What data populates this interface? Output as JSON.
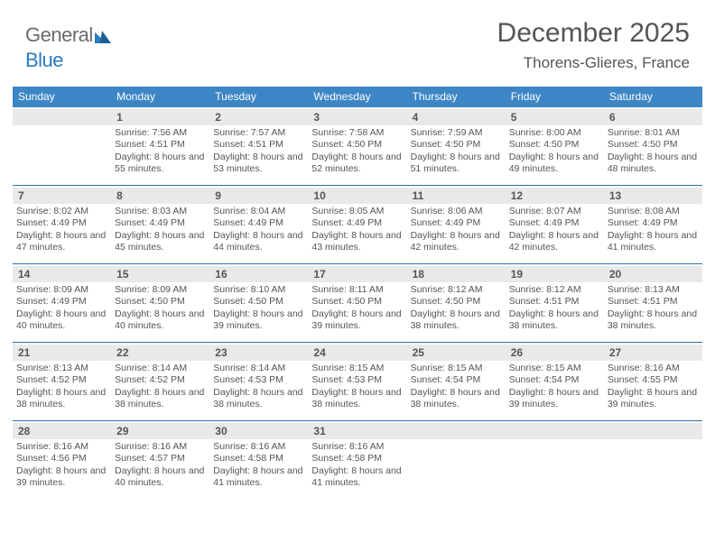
{
  "brand": {
    "part1": "General",
    "part2": "Blue"
  },
  "title": {
    "month": "December 2025",
    "location": "Thorens-Glieres, France"
  },
  "colors": {
    "header_bg": "#3d86c6",
    "week_border": "#2e6da4",
    "daynum_bg": "#e9e9e9",
    "text": "#555555",
    "brand_gray": "#6a6a6a",
    "brand_blue": "#2b7bbf"
  },
  "day_names": [
    "Sunday",
    "Monday",
    "Tuesday",
    "Wednesday",
    "Thursday",
    "Friday",
    "Saturday"
  ],
  "weeks": [
    [
      null,
      {
        "n": "1",
        "sr": "7:56 AM",
        "ss": "4:51 PM",
        "dl": "8 hours and 55 minutes."
      },
      {
        "n": "2",
        "sr": "7:57 AM",
        "ss": "4:51 PM",
        "dl": "8 hours and 53 minutes."
      },
      {
        "n": "3",
        "sr": "7:58 AM",
        "ss": "4:50 PM",
        "dl": "8 hours and 52 minutes."
      },
      {
        "n": "4",
        "sr": "7:59 AM",
        "ss": "4:50 PM",
        "dl": "8 hours and 51 minutes."
      },
      {
        "n": "5",
        "sr": "8:00 AM",
        "ss": "4:50 PM",
        "dl": "8 hours and 49 minutes."
      },
      {
        "n": "6",
        "sr": "8:01 AM",
        "ss": "4:50 PM",
        "dl": "8 hours and 48 minutes."
      }
    ],
    [
      {
        "n": "7",
        "sr": "8:02 AM",
        "ss": "4:49 PM",
        "dl": "8 hours and 47 minutes."
      },
      {
        "n": "8",
        "sr": "8:03 AM",
        "ss": "4:49 PM",
        "dl": "8 hours and 45 minutes."
      },
      {
        "n": "9",
        "sr": "8:04 AM",
        "ss": "4:49 PM",
        "dl": "8 hours and 44 minutes."
      },
      {
        "n": "10",
        "sr": "8:05 AM",
        "ss": "4:49 PM",
        "dl": "8 hours and 43 minutes."
      },
      {
        "n": "11",
        "sr": "8:06 AM",
        "ss": "4:49 PM",
        "dl": "8 hours and 42 minutes."
      },
      {
        "n": "12",
        "sr": "8:07 AM",
        "ss": "4:49 PM",
        "dl": "8 hours and 42 minutes."
      },
      {
        "n": "13",
        "sr": "8:08 AM",
        "ss": "4:49 PM",
        "dl": "8 hours and 41 minutes."
      }
    ],
    [
      {
        "n": "14",
        "sr": "8:09 AM",
        "ss": "4:49 PM",
        "dl": "8 hours and 40 minutes."
      },
      {
        "n": "15",
        "sr": "8:09 AM",
        "ss": "4:50 PM",
        "dl": "8 hours and 40 minutes."
      },
      {
        "n": "16",
        "sr": "8:10 AM",
        "ss": "4:50 PM",
        "dl": "8 hours and 39 minutes."
      },
      {
        "n": "17",
        "sr": "8:11 AM",
        "ss": "4:50 PM",
        "dl": "8 hours and 39 minutes."
      },
      {
        "n": "18",
        "sr": "8:12 AM",
        "ss": "4:50 PM",
        "dl": "8 hours and 38 minutes."
      },
      {
        "n": "19",
        "sr": "8:12 AM",
        "ss": "4:51 PM",
        "dl": "8 hours and 38 minutes."
      },
      {
        "n": "20",
        "sr": "8:13 AM",
        "ss": "4:51 PM",
        "dl": "8 hours and 38 minutes."
      }
    ],
    [
      {
        "n": "21",
        "sr": "8:13 AM",
        "ss": "4:52 PM",
        "dl": "8 hours and 38 minutes."
      },
      {
        "n": "22",
        "sr": "8:14 AM",
        "ss": "4:52 PM",
        "dl": "8 hours and 38 minutes."
      },
      {
        "n": "23",
        "sr": "8:14 AM",
        "ss": "4:53 PM",
        "dl": "8 hours and 38 minutes."
      },
      {
        "n": "24",
        "sr": "8:15 AM",
        "ss": "4:53 PM",
        "dl": "8 hours and 38 minutes."
      },
      {
        "n": "25",
        "sr": "8:15 AM",
        "ss": "4:54 PM",
        "dl": "8 hours and 38 minutes."
      },
      {
        "n": "26",
        "sr": "8:15 AM",
        "ss": "4:54 PM",
        "dl": "8 hours and 39 minutes."
      },
      {
        "n": "27",
        "sr": "8:16 AM",
        "ss": "4:55 PM",
        "dl": "8 hours and 39 minutes."
      }
    ],
    [
      {
        "n": "28",
        "sr": "8:16 AM",
        "ss": "4:56 PM",
        "dl": "8 hours and 39 minutes."
      },
      {
        "n": "29",
        "sr": "8:16 AM",
        "ss": "4:57 PM",
        "dl": "8 hours and 40 minutes."
      },
      {
        "n": "30",
        "sr": "8:16 AM",
        "ss": "4:58 PM",
        "dl": "8 hours and 41 minutes."
      },
      {
        "n": "31",
        "sr": "8:16 AM",
        "ss": "4:58 PM",
        "dl": "8 hours and 41 minutes."
      },
      null,
      null,
      null
    ]
  ],
  "labels": {
    "sunrise": "Sunrise: ",
    "sunset": "Sunset: ",
    "daylight": "Daylight: "
  }
}
